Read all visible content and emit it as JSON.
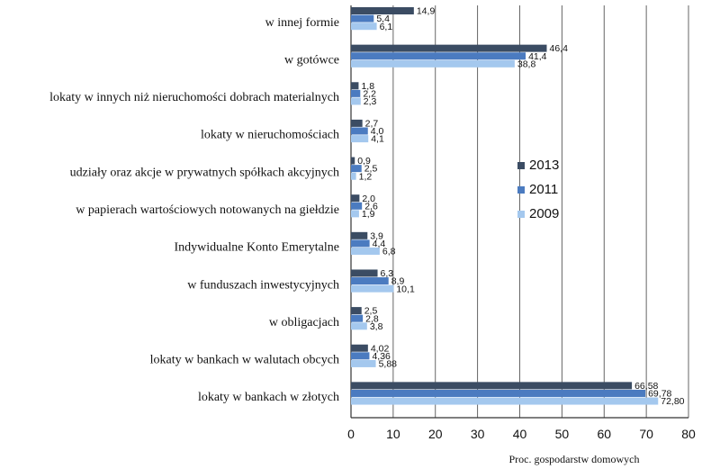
{
  "chart_data": {
    "type": "bar",
    "orientation": "horizontal",
    "categories": [
      "w innej formie",
      "w gotówce",
      "lokaty w innych niż nieruchomości dobrach materialnych",
      "lokaty w nieruchomościach",
      "udziały oraz akcje w prywatnych spółkach akcyjnych",
      "w papierach wartościowych notowanych na giełdzie",
      "Indywidualne Konto Emerytalne",
      "w funduszach inwestycyjnych",
      "w obligacjach",
      "lokaty w bankach w walutach obcych",
      "lokaty w bankach w złotych"
    ],
    "series": [
      {
        "name": "2013",
        "color": "#3b4c63",
        "values": [
          14.9,
          46.4,
          1.8,
          2.7,
          0.9,
          2.0,
          3.9,
          6.3,
          2.5,
          4.02,
          66.58
        ],
        "labels": [
          "14,9",
          "46,4",
          "1,8",
          "2,7",
          "0,9",
          "2,0",
          "3,9",
          "6,3",
          "2,5",
          "4,02",
          "66,58"
        ]
      },
      {
        "name": "2011",
        "color": "#4b7bc0",
        "values": [
          5.4,
          41.4,
          2.2,
          4.0,
          2.5,
          2.6,
          4.4,
          8.9,
          2.8,
          4.36,
          69.78
        ],
        "labels": [
          "5,4",
          "41,4",
          "2,2",
          "4,0",
          "2,5",
          "2,6",
          "4,4",
          "8,9",
          "2,8",
          "4,36",
          "69,78"
        ]
      },
      {
        "name": "2009",
        "color": "#a4c8ee",
        "values": [
          6.1,
          38.8,
          2.3,
          4.1,
          1.2,
          1.9,
          6.8,
          10.1,
          3.8,
          5.88,
          72.8
        ],
        "labels": [
          "6,1",
          "38,8",
          "2,3",
          "4,1",
          "1,2",
          "1,9",
          "6,8",
          "10,1",
          "3,8",
          "5,88",
          "72,80"
        ]
      }
    ],
    "xlim": [
      0,
      80
    ],
    "xticks": [
      0,
      10,
      20,
      30,
      40,
      50,
      60,
      70,
      80
    ],
    "xlabel": "Proc. gospodarstw domowych",
    "ylabel": "",
    "title": "",
    "grid": "vertical",
    "legend_position": "center-right"
  }
}
